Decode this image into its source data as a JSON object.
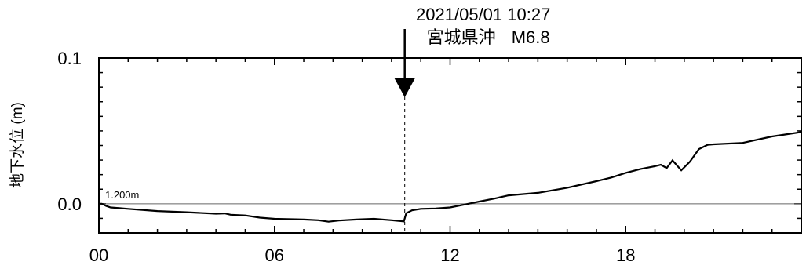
{
  "chart_data": {
    "type": "line",
    "ylabel": "地下水位 (m)",
    "baseline_label": "1.200m",
    "xlim": [
      0,
      24
    ],
    "ylim": [
      -0.02,
      0.1
    ],
    "x_ticks": [
      {
        "value": 0,
        "label": "00"
      },
      {
        "value": 6,
        "label": "06"
      },
      {
        "value": 12,
        "label": "12"
      },
      {
        "value": 18,
        "label": "18"
      }
    ],
    "y_ticks": [
      {
        "value": 0.1,
        "label": "0.1"
      },
      {
        "value": 0.0,
        "label": "0.0"
      }
    ],
    "event": {
      "x": 10.45,
      "datetime": "2021/05/01 10:27",
      "place": "宮城県沖",
      "magnitude": "M6.8"
    },
    "series": [
      {
        "color": "#000000",
        "points": [
          [
            0.0,
            0.0
          ],
          [
            0.1,
            0.0
          ],
          [
            0.25,
            -0.0015
          ],
          [
            0.4,
            -0.0025
          ],
          [
            0.7,
            -0.003
          ],
          [
            1.0,
            -0.0035
          ],
          [
            2.0,
            -0.005
          ],
          [
            3.0,
            -0.0058
          ],
          [
            4.0,
            -0.0068
          ],
          [
            4.3,
            -0.0066
          ],
          [
            4.5,
            -0.0075
          ],
          [
            5.0,
            -0.008
          ],
          [
            5.5,
            -0.0095
          ],
          [
            6.0,
            -0.0103
          ],
          [
            7.0,
            -0.0108
          ],
          [
            7.5,
            -0.0113
          ],
          [
            7.85,
            -0.0123
          ],
          [
            8.2,
            -0.0115
          ],
          [
            8.8,
            -0.0108
          ],
          [
            9.4,
            -0.0103
          ],
          [
            10.0,
            -0.0113
          ],
          [
            10.42,
            -0.0121
          ],
          [
            10.5,
            -0.0065
          ],
          [
            10.7,
            -0.0045
          ],
          [
            11.0,
            -0.0035
          ],
          [
            11.5,
            -0.0032
          ],
          [
            12.0,
            -0.0025
          ],
          [
            12.5,
            -0.0005
          ],
          [
            13.0,
            0.0015
          ],
          [
            13.5,
            0.0035
          ],
          [
            14.0,
            0.0058
          ],
          [
            15.0,
            0.0075
          ],
          [
            16.0,
            0.011
          ],
          [
            17.0,
            0.0155
          ],
          [
            17.5,
            0.018
          ],
          [
            18.0,
            0.0212
          ],
          [
            18.5,
            0.0238
          ],
          [
            19.0,
            0.0258
          ],
          [
            19.2,
            0.0268
          ],
          [
            19.4,
            0.0245
          ],
          [
            19.6,
            0.0298
          ],
          [
            19.9,
            0.023
          ],
          [
            20.2,
            0.029
          ],
          [
            20.5,
            0.0375
          ],
          [
            20.8,
            0.0405
          ],
          [
            21.0,
            0.0408
          ],
          [
            22.0,
            0.0418
          ],
          [
            23.0,
            0.0462
          ],
          [
            24.0,
            0.0492
          ]
        ]
      }
    ]
  }
}
